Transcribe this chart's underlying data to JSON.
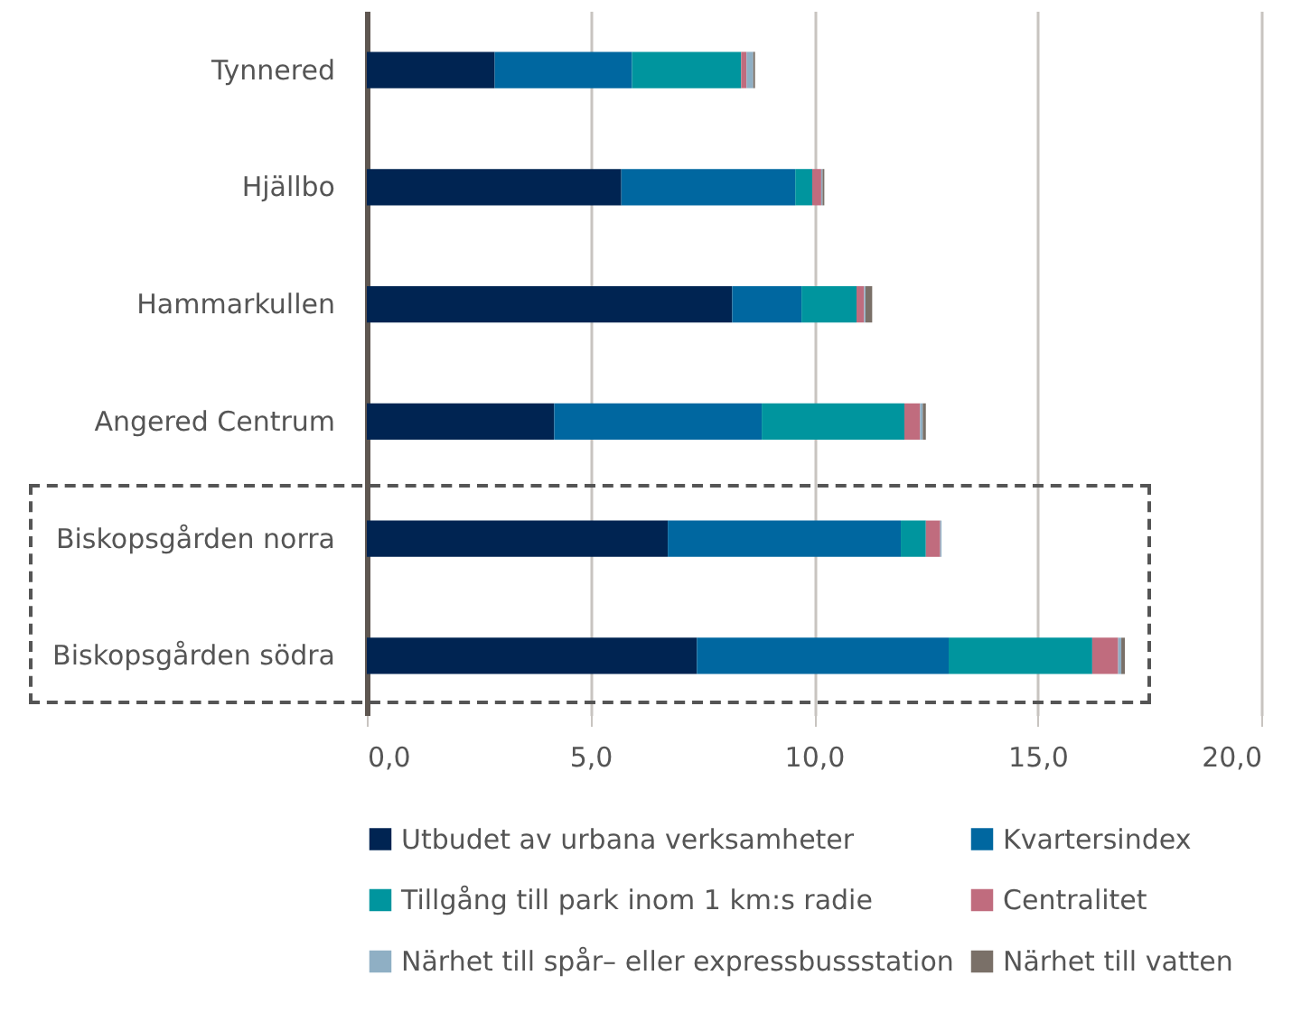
{
  "chart_data": {
    "type": "bar",
    "orientation": "horizontal",
    "stacked": true,
    "categories": [
      "Tynnered",
      "Hjällbo",
      "Hammarkullen",
      "Angered Centrum",
      "Biskopsgården norra",
      "Biskopsgården södra"
    ],
    "series": [
      {
        "name": "Utbudet av urbana verksamheter",
        "color": "#002452",
        "values": [
          2.86,
          5.69,
          8.17,
          4.19,
          6.73,
          7.38
        ]
      },
      {
        "name": "Kvartersindex",
        "color": "#0067a0",
        "values": [
          3.07,
          3.89,
          1.55,
          4.64,
          5.21,
          5.63
        ]
      },
      {
        "name": "Tillgång till park inom 1 km:s radie",
        "color": "#00959e",
        "values": [
          2.44,
          0.38,
          1.23,
          3.19,
          0.56,
          3.21
        ]
      },
      {
        "name": "Centralitet",
        "color": "#c06c7e",
        "values": [
          0.12,
          0.2,
          0.17,
          0.35,
          0.32,
          0.58
        ]
      },
      {
        "name": "Närhet till spår– eller expressbussstation",
        "color": "#8fafc4",
        "values": [
          0.15,
          0.03,
          0.03,
          0.06,
          0.03,
          0.07
        ]
      },
      {
        "name": "Närhet till vatten",
        "color": "#7a7068",
        "values": [
          0.04,
          0.04,
          0.15,
          0.07,
          0,
          0.08
        ]
      }
    ],
    "xlim": [
      0,
      20
    ],
    "xticks": [
      {
        "value": 0,
        "label": "0,0"
      },
      {
        "value": 5,
        "label": "5,0"
      },
      {
        "value": 10,
        "label": "10,0"
      },
      {
        "value": 15,
        "label": "15,0"
      },
      {
        "value": 20,
        "label": "20,0"
      }
    ],
    "grid": "x",
    "legend": "bottom"
  }
}
